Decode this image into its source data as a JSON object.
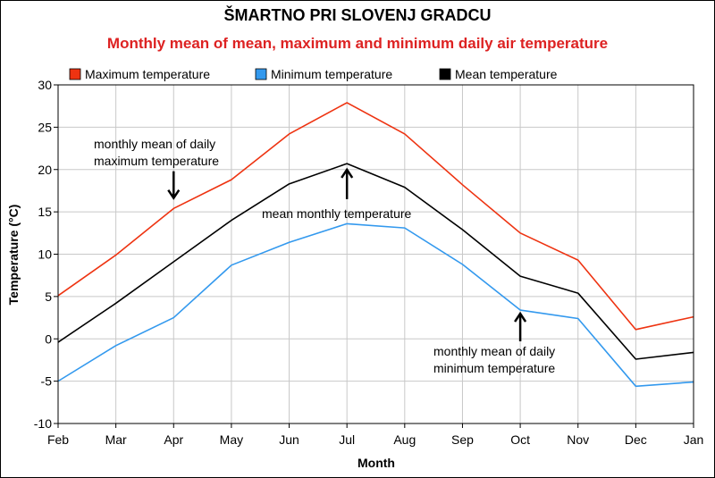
{
  "chart_data": {
    "type": "line",
    "title": "ŠMARTNO PRI SLOVENJ GRADCU",
    "subtitle": "Monthly mean of mean, maximum and minimum daily air temperature",
    "xlabel": "Month",
    "ylabel": "Temperature (°C)",
    "ylim": [
      -10,
      30
    ],
    "yticks": [
      -10,
      -5,
      0,
      5,
      10,
      15,
      20,
      25,
      30
    ],
    "categories": [
      "Feb",
      "Mar",
      "Apr",
      "May",
      "Jun",
      "Jul",
      "Aug",
      "Sep",
      "Oct",
      "Nov",
      "Dec",
      "Jan"
    ],
    "grid": true,
    "legend_position": "top",
    "series": [
      {
        "name": "Maximum temperature",
        "color": "#ee3311",
        "values": [
          5.1,
          9.9,
          15.4,
          18.8,
          24.2,
          27.9,
          24.2,
          18.2,
          12.5,
          9.3,
          1.1,
          2.6
        ]
      },
      {
        "name": "Minimum temperature",
        "color": "#3399ee",
        "values": [
          -5.0,
          -0.8,
          2.5,
          8.7,
          11.4,
          13.6,
          13.1,
          8.8,
          3.4,
          2.4,
          -5.6,
          -5.1
        ]
      },
      {
        "name": "Mean temperature",
        "color": "#000000",
        "values": [
          -0.4,
          4.2,
          9.1,
          14.0,
          18.3,
          20.7,
          17.9,
          12.9,
          7.4,
          5.4,
          -2.4,
          -1.6
        ]
      }
    ],
    "annotations": [
      {
        "lines": [
          "monthly mean of daily",
          "maximum temperature"
        ],
        "category": "Apr",
        "y": 16.0,
        "arrow": "down"
      },
      {
        "lines": [
          "mean monthly temperature"
        ],
        "category": "Jul",
        "y": 20.3,
        "arrow": "up"
      },
      {
        "lines": [
          "monthly mean of daily",
          "minimum temperature"
        ],
        "category": "Oct",
        "y": 3.4,
        "arrow": "up"
      }
    ]
  }
}
